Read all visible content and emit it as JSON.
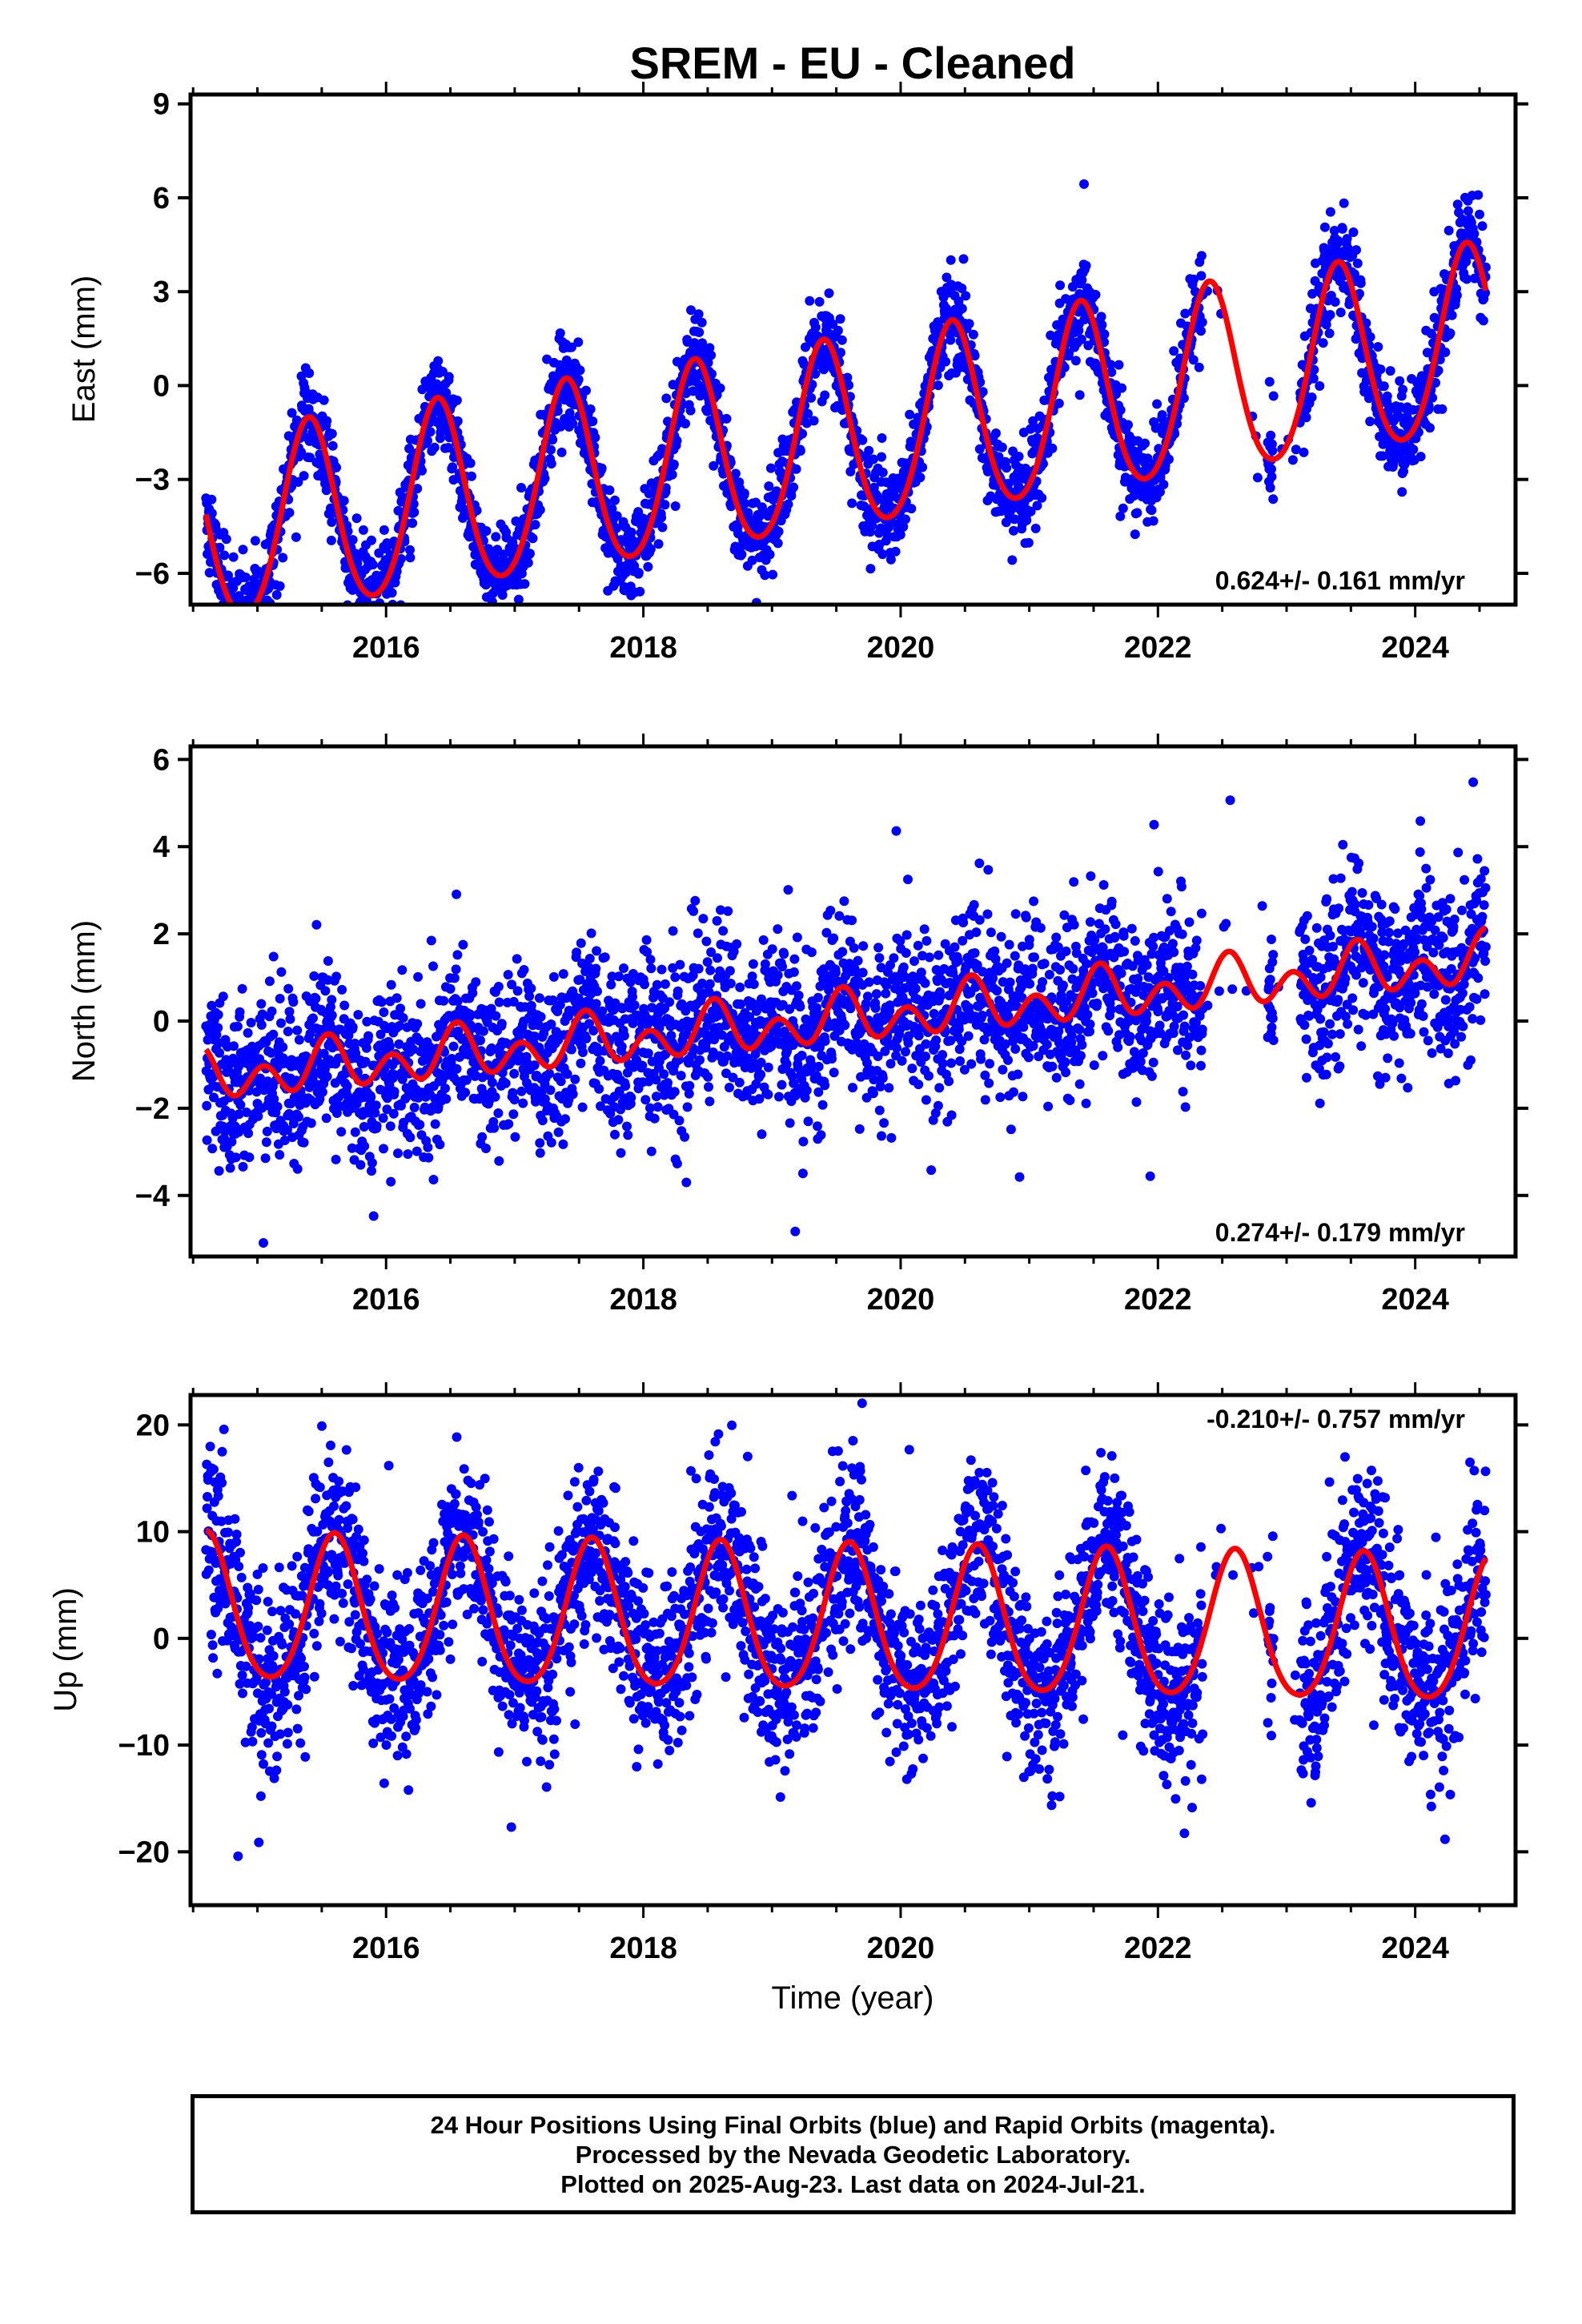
{
  "title": "SREM  - EU - Cleaned",
  "x_axis_label": "Time (year)",
  "footer": {
    "line1": "24 Hour Positions Using Final Orbits (blue) and Rapid Orbits (magenta).",
    "line2": "Processed by the Nevada Geodetic Laboratory.",
    "line3": "Plotted on 2025-Aug-23. Last data on 2024-Jul-21."
  },
  "colors": {
    "data_points": "#0000ff",
    "model_curve": "#ff0000",
    "axes": "#000000"
  },
  "chart_data": [
    {
      "type": "scatter",
      "component": "East",
      "ylabel": "East (mm)",
      "rate_label": "0.624+/- 0.161 mm/yr",
      "xlim": [
        2014.48,
        2024.78
      ],
      "ylim": [
        -7,
        9.3
      ],
      "yticks": [
        9,
        6,
        3,
        0,
        -3,
        -6
      ],
      "ytick_labels": [
        "9",
        "6",
        "3",
        "0",
        "−3",
        "−6"
      ],
      "xticks": [
        2016,
        2018,
        2020,
        2022,
        2024
      ],
      "xtick_labels": [
        "2016",
        "2018",
        "2020",
        "2022",
        "2024"
      ],
      "data_start": 2014.6,
      "data_end": 2024.55,
      "gaps": [
        [
          2022.35,
          2022.85
        ],
        [
          2022.9,
          2023.1
        ]
      ],
      "model": {
        "offset": -4.8,
        "rate": 0.62,
        "amp_annual": 3.0,
        "annual_peak_year_fraction": 0.4,
        "amp_semiannual": 0.3,
        "scatter_sd": 0.75
      },
      "series": [
        {
          "name": "24 Hour Positions (Final Orbits)",
          "color": "#0000ff"
        },
        {
          "name": "Model",
          "color": "#ff0000"
        }
      ]
    },
    {
      "type": "scatter",
      "component": "North",
      "ylabel": "North (mm)",
      "rate_label": "0.274+/- 0.179 mm/yr",
      "xlim": [
        2014.48,
        2024.78
      ],
      "ylim": [
        -5.4,
        6.3
      ],
      "yticks": [
        6,
        4,
        2,
        0,
        -2,
        -4
      ],
      "ytick_labels": [
        "6",
        "4",
        "2",
        "0",
        "−2",
        "−4"
      ],
      "xticks": [
        2016,
        2018,
        2020,
        2022,
        2024
      ],
      "xtick_labels": [
        "2016",
        "2018",
        "2020",
        "2022",
        "2024"
      ],
      "data_start": 2014.6,
      "data_end": 2024.55,
      "gaps": [
        [
          2022.35,
          2022.85
        ],
        [
          2022.9,
          2023.1
        ]
      ],
      "model": {
        "offset": -1.3,
        "rate": 0.27,
        "amp_annual": 0.3,
        "annual_peak_year_fraction": 0.55,
        "amp_semiannual": 0.45,
        "scatter_sd": 0.95
      },
      "series": [
        {
          "name": "24 Hour Positions (Final Orbits)",
          "color": "#0000ff"
        },
        {
          "name": "Model",
          "color": "#ff0000"
        }
      ]
    },
    {
      "type": "scatter",
      "component": "Up",
      "ylabel": "Up (mm)",
      "rate_label": "-0.210+/- 0.757 mm/yr",
      "xlim": [
        2014.48,
        2024.78
      ],
      "ylim": [
        -25,
        22.8
      ],
      "yticks": [
        20,
        10,
        0,
        -10,
        -20
      ],
      "ytick_labels": [
        "20",
        "10",
        "0",
        "−10",
        "−20"
      ],
      "xticks": [
        2016,
        2018,
        2020,
        2022,
        2024
      ],
      "xtick_labels": [
        "2016",
        "2018",
        "2020",
        "2022",
        "2024"
      ],
      "data_start": 2014.6,
      "data_end": 2024.55,
      "gaps": [
        [
          2022.35,
          2022.85
        ],
        [
          2022.9,
          2023.1
        ]
      ],
      "model": {
        "offset": 2.5,
        "rate": -0.21,
        "amp_annual": 6.8,
        "annual_peak_year_fraction": 0.6,
        "amp_semiannual": 0.8,
        "scatter_sd": 4.2
      },
      "series": [
        {
          "name": "24 Hour Positions (Final Orbits)",
          "color": "#0000ff"
        },
        {
          "name": "Model",
          "color": "#ff0000"
        }
      ]
    }
  ]
}
